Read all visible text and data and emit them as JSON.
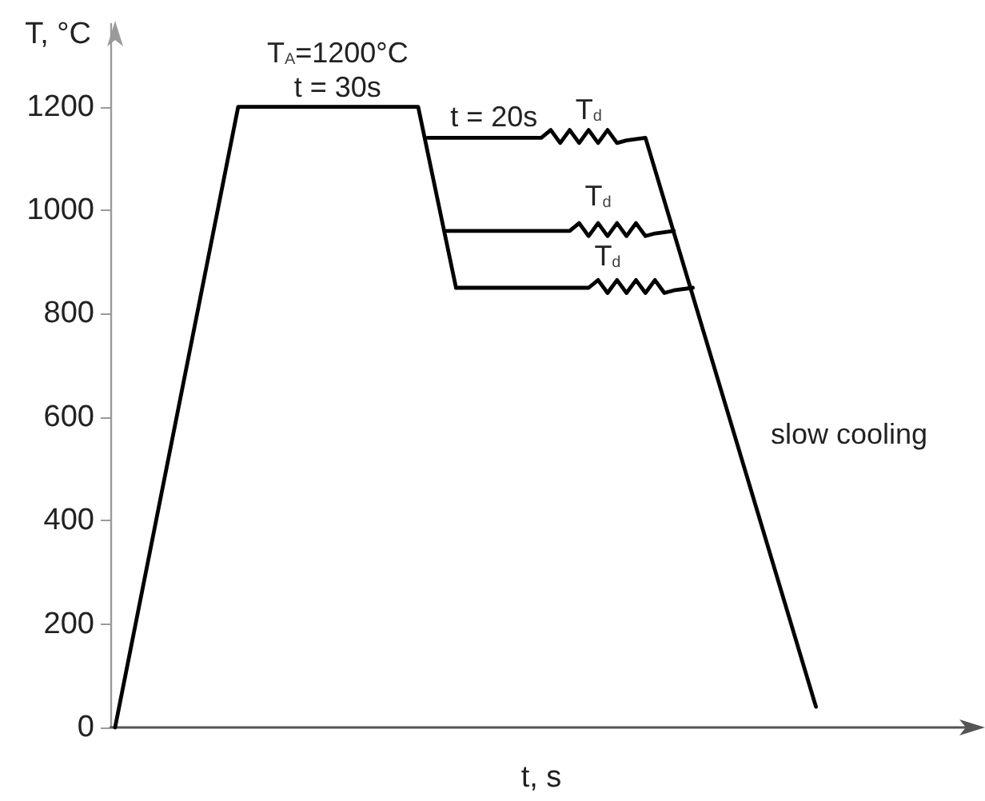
{
  "chart_data": {
    "type": "line",
    "xlabel": "t, s",
    "ylabel": "T, °C",
    "ylim": [
      0,
      1360
    ],
    "yticks": [
      0,
      200,
      400,
      600,
      800,
      1000,
      1200
    ],
    "tick_labels": "y",
    "line_style": "solid",
    "categories": [
      null,
      null,
      null,
      null,
      null,
      null,
      null,
      null,
      null,
      null,
      null,
      null,
      null,
      null,
      null,
      null,
      null,
      null,
      null,
      null,
      null,
      null,
      null,
      null,
      null,
      null,
      null,
      null,
      null,
      null,
      null,
      null,
      null,
      null,
      null,
      null,
      null,
      null,
      null,
      null,
      null,
      null,
      null,
      null,
      null,
      null,
      null,
      null,
      null,
      null,
      null,
      null,
      null,
      null,
      null,
      null,
      null,
      null,
      null,
      null,
      null,
      null,
      null,
      null,
      null,
      null,
      null,
      null,
      null,
      null,
      null,
      null,
      null,
      null,
      null,
      null,
      null,
      null,
      null,
      null,
      null,
      null,
      null,
      null,
      null,
      null,
      null,
      null,
      null,
      null,
      null
    ],
    "series": [
      {
        "color": "#000000",
        "values": [
          0,
          null,
          null,
          null,
          null,
          null,
          null,
          null,
          null,
          null,
          null,
          null,
          null,
          1200,
          null,
          null,
          null,
          null,
          null,
          null,
          null,
          null,
          null,
          null,
          null,
          null,
          null,
          null,
          null,
          null,
          null,
          null,
          1200,
          null,
          null,
          null,
          850,
          null,
          null,
          null,
          null,
          null,
          null,
          null,
          null,
          null,
          null,
          null,
          null,
          null,
          null,
          null,
          null,
          null,
          null,
          null,
          null,
          null,
          null,
          null,
          null,
          null,
          null,
          null,
          null,
          null,
          null,
          null,
          null,
          null,
          null,
          null,
          null,
          null,
          null,
          null,
          null,
          null,
          null,
          null,
          null,
          null,
          null,
          null,
          null,
          null,
          null,
          null,
          null,
          null,
          null
        ]
      },
      {
        "color": "#000000",
        "values": [
          null,
          null,
          null,
          null,
          null,
          null,
          null,
          null,
          null,
          null,
          null,
          null,
          null,
          null,
          null,
          null,
          null,
          null,
          null,
          null,
          null,
          null,
          null,
          null,
          null,
          null,
          null,
          null,
          null,
          null,
          null,
          null,
          null,
          1140,
          null,
          null,
          null,
          null,
          null,
          null,
          null,
          null,
          null,
          null,
          null,
          1140,
          1155,
          1130,
          1155,
          1130,
          1155,
          1130,
          1155,
          1130,
          1135,
          null,
          1140,
          null,
          null,
          null,
          null,
          null,
          null,
          null,
          null,
          null,
          null,
          null,
          null,
          null,
          null,
          null,
          null,
          null,
          40,
          null,
          null,
          null,
          null,
          null,
          null,
          null,
          null,
          null,
          null,
          null,
          null,
          null,
          null,
          null,
          null
        ]
      },
      {
        "color": "#000000",
        "values": [
          null,
          null,
          null,
          null,
          null,
          null,
          null,
          null,
          null,
          null,
          null,
          null,
          null,
          null,
          null,
          null,
          null,
          null,
          null,
          null,
          null,
          null,
          null,
          null,
          null,
          null,
          null,
          null,
          null,
          null,
          null,
          null,
          null,
          null,
          null,
          960,
          null,
          null,
          null,
          null,
          null,
          null,
          null,
          null,
          null,
          null,
          null,
          null,
          960,
          975,
          950,
          975,
          950,
          975,
          950,
          975,
          950,
          955,
          null,
          960,
          null,
          null,
          null,
          null,
          null,
          null,
          null,
          null,
          null,
          null,
          null,
          null,
          null,
          null,
          null,
          null,
          null,
          null,
          null,
          null,
          null,
          null,
          null,
          null,
          null,
          null,
          null,
          null,
          null,
          null,
          null
        ]
      },
      {
        "color": "#000000",
        "values": [
          null,
          null,
          null,
          null,
          null,
          null,
          null,
          null,
          null,
          null,
          null,
          null,
          null,
          null,
          null,
          null,
          null,
          null,
          null,
          null,
          null,
          null,
          null,
          null,
          null,
          null,
          null,
          null,
          null,
          null,
          null,
          null,
          null,
          null,
          null,
          null,
          850,
          null,
          null,
          null,
          null,
          null,
          null,
          null,
          null,
          null,
          null,
          null,
          null,
          null,
          850,
          865,
          840,
          865,
          840,
          865,
          840,
          865,
          840,
          845,
          null,
          850,
          null,
          null,
          null,
          null,
          null,
          null,
          null,
          null,
          null,
          null,
          null,
          null,
          null,
          null,
          null,
          null,
          null,
          null,
          null,
          null,
          null,
          null,
          null,
          null,
          null,
          null,
          null,
          null,
          null
        ]
      }
    ],
    "annotations": [
      "T$_{A}$=1200°C",
      "t = 30s",
      "t = 20s",
      "T$_{d}$",
      "T$_{d}$",
      "T$_{d}$",
      "slow cooling"
    ]
  }
}
